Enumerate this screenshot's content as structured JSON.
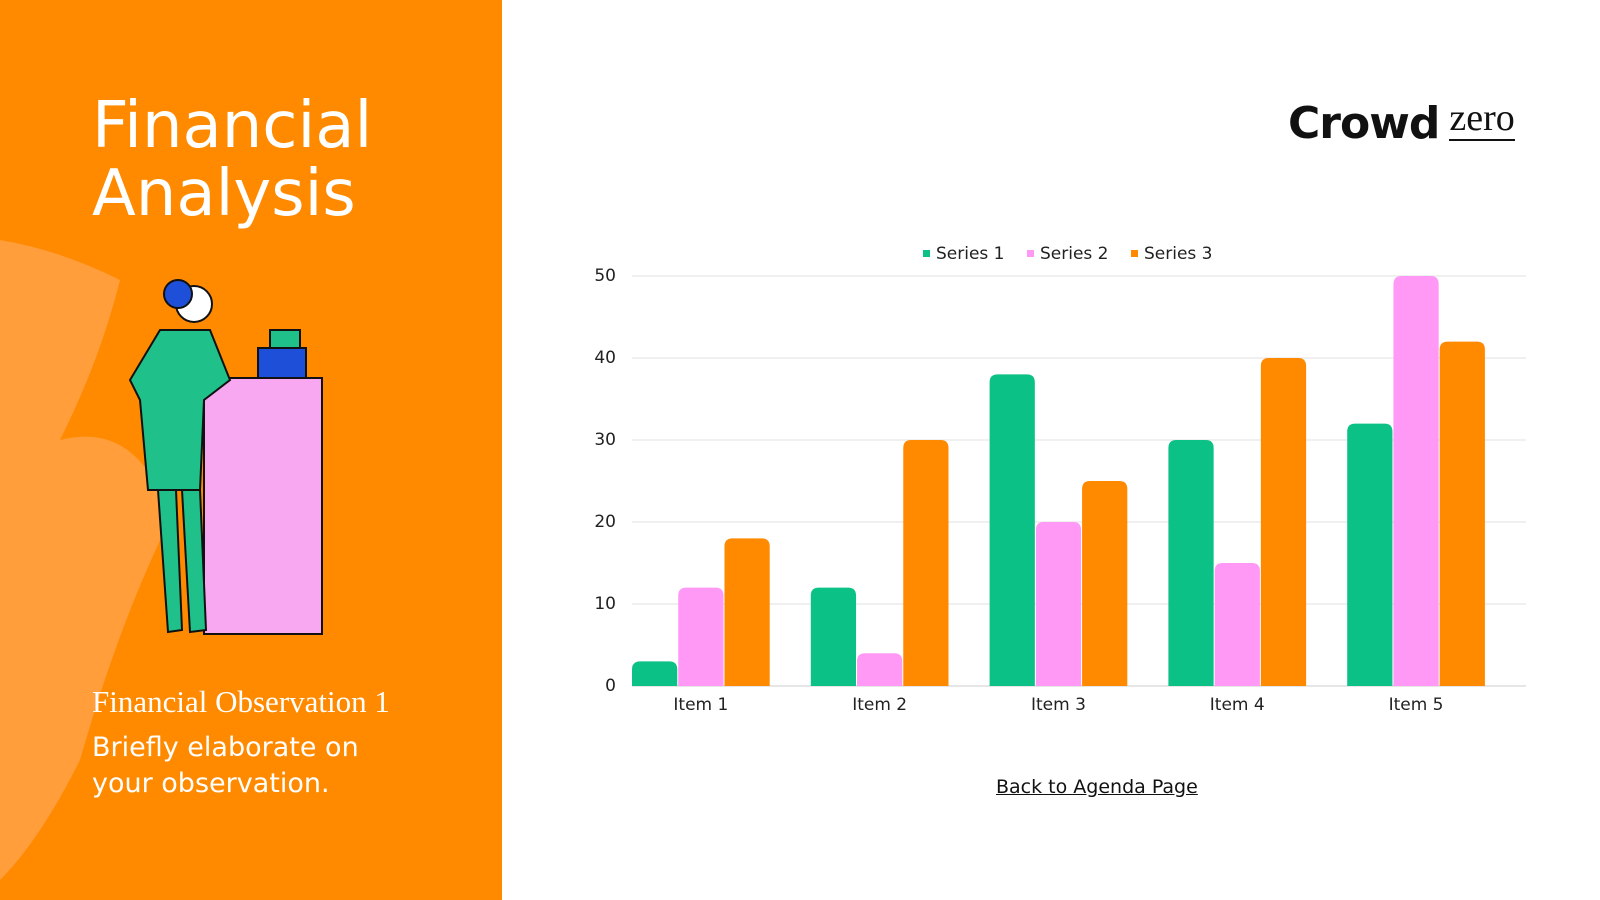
{
  "slide": {
    "title": "Financial Analysis",
    "observation_title": "Financial Observation 1",
    "observation_body": "Briefly elaborate on your observation.",
    "logo_primary": "Crowd",
    "logo_secondary": "zero",
    "link": "Back to Agenda Page"
  },
  "chart_data": {
    "type": "bar",
    "categories": [
      "Item 1",
      "Item 2",
      "Item 3",
      "Item 4",
      "Item 5"
    ],
    "series": [
      {
        "name": "Series 1",
        "color": "#0cc185",
        "values": [
          3,
          12,
          38,
          30,
          32
        ]
      },
      {
        "name": "Series 2",
        "color": "#ff99f5",
        "values": [
          12,
          4,
          20,
          15,
          50
        ]
      },
      {
        "name": "Series 3",
        "color": "#ff8a00",
        "values": [
          18,
          30,
          25,
          40,
          42
        ]
      }
    ],
    "ylim": [
      0,
      50
    ],
    "yticks": [
      0,
      10,
      20,
      30,
      40,
      50
    ],
    "grid": true,
    "legend": "top"
  }
}
